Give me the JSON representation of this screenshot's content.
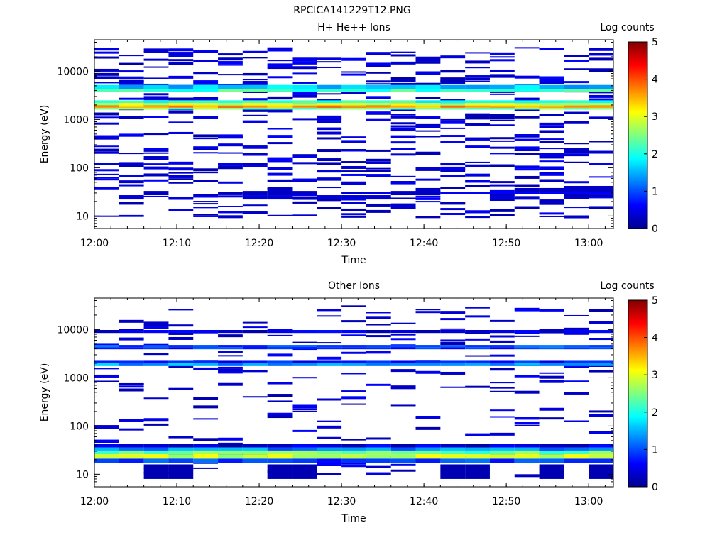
{
  "figure_title": "RPCICA141229T12.PNG",
  "chart_data": [
    {
      "type": "heatmap",
      "title": "H+ He++ Ions",
      "xlabel": "Time",
      "ylabel": "Energy (eV)",
      "x_ticks": [
        "12:00",
        "12:10",
        "12:20",
        "12:30",
        "12:40",
        "12:50",
        "13:00"
      ],
      "xlim": [
        "12:00",
        "13:03"
      ],
      "y_scale": "log",
      "y_ticks": [
        10,
        100,
        1000,
        10000
      ],
      "y_tick_labels": [
        "10",
        "100",
        "1000",
        "10000"
      ],
      "ylim": [
        5.5,
        45000
      ],
      "colorbar": {
        "label": "Log counts",
        "range": [
          0,
          5
        ],
        "ticks": [
          "0",
          "1",
          "2",
          "3",
          "4",
          "5"
        ],
        "colormap": "jet"
      },
      "time_bins": [
        "12:00",
        "12:03",
        "12:06",
        "12:09",
        "12:12",
        "12:15",
        "12:18",
        "12:21",
        "12:24",
        "12:27",
        "12:30",
        "12:33",
        "12:36",
        "12:39",
        "12:42",
        "12:45",
        "12:48",
        "12:51",
        "12:54",
        "12:57",
        "13:00"
      ],
      "cells": [
        {
          "e": [
            4000,
            5200
          ],
          "v": 1.6
        },
        {
          "e": [
            3800,
            4200
          ],
          "v": 2.2
        },
        {
          "e": [
            2200,
            2500
          ],
          "v": 2.0
        },
        {
          "e": [
            1950,
            2200
          ],
          "v": 2.9
        },
        {
          "e": [
            1750,
            1950
          ],
          "v": 3.6
        },
        {
          "e": [
            1600,
            1750
          ],
          "v": 2.5
        },
        {
          "e": [
            22,
            27
          ],
          "v": 0.4,
          "bins": [
            1,
            6,
            7,
            9,
            10,
            11,
            16
          ]
        },
        {
          "e": [
            27,
            33
          ],
          "v": 0.3,
          "bins": [
            2,
            6,
            7,
            8,
            12,
            13
          ]
        },
        {
          "e": [
            28,
            32
          ],
          "v": 0.6,
          "bins": [
            14,
            15,
            16,
            17,
            18,
            19,
            20
          ]
        },
        {
          "e": [
            32,
            38
          ],
          "v": 0.3,
          "bins": [
            7,
            13,
            17,
            18,
            20
          ]
        },
        {
          "e": [
            17,
            22
          ],
          "v": 0.3,
          "bins": [
            18
          ]
        },
        {
          "e": [
            36,
            42
          ],
          "v": 0.3,
          "bins": [
            19,
            20
          ]
        },
        {
          "e": [
            1000,
            1300
          ],
          "v": 0.2,
          "bins": [
            15,
            16
          ]
        },
        {
          "e": [
            200,
            260
          ],
          "v": 0.3,
          "bins": [
            19
          ]
        }
      ],
      "sparse_counts_below_1": true
    },
    {
      "type": "heatmap",
      "title": "Other Ions",
      "xlabel": "Time",
      "ylabel": "Energy (eV)",
      "x_ticks": [
        "12:00",
        "12:10",
        "12:20",
        "12:30",
        "12:40",
        "12:50",
        "13:00"
      ],
      "xlim": [
        "12:00",
        "13:03"
      ],
      "y_scale": "log",
      "y_ticks": [
        10,
        100,
        1000,
        10000
      ],
      "y_tick_labels": [
        "10",
        "100",
        "1000",
        "10000"
      ],
      "ylim": [
        5.5,
        45000
      ],
      "colorbar": {
        "label": "Log counts",
        "range": [
          0,
          5
        ],
        "ticks": [
          "0",
          "1",
          "2",
          "3",
          "4",
          "5"
        ],
        "colormap": "jet"
      },
      "time_bins": [
        "12:00",
        "12:03",
        "12:06",
        "12:09",
        "12:12",
        "12:15",
        "12:18",
        "12:21",
        "12:24",
        "12:27",
        "12:30",
        "12:33",
        "12:36",
        "12:39",
        "12:42",
        "12:45",
        "12:48",
        "12:51",
        "12:54",
        "12:57",
        "13:00"
      ],
      "cells": [
        {
          "e": [
            8500,
            9800
          ],
          "v": 0.4
        },
        {
          "e": [
            4300,
            4800
          ],
          "v": 1.0
        },
        {
          "e": [
            3900,
            4300
          ],
          "v": 0.8
        },
        {
          "e": [
            2000,
            2250
          ],
          "v": 0.7
        },
        {
          "e": [
            1750,
            2000
          ],
          "v": 1.4
        },
        {
          "e": [
            36,
            42
          ],
          "v": 0.4
        },
        {
          "e": [
            31,
            36
          ],
          "v": 1.3
        },
        {
          "e": [
            26,
            31
          ],
          "v": 2.4
        },
        {
          "e": [
            21,
            26
          ],
          "v": 2.8
        },
        {
          "e": [
            17,
            21
          ],
          "v": 0.9
        },
        {
          "e": [
            8,
            16
          ],
          "v": 0.2,
          "bins": [
            2,
            3,
            7,
            8,
            14,
            15,
            18,
            20
          ]
        }
      ],
      "sparse_counts_below_1": true
    }
  ]
}
